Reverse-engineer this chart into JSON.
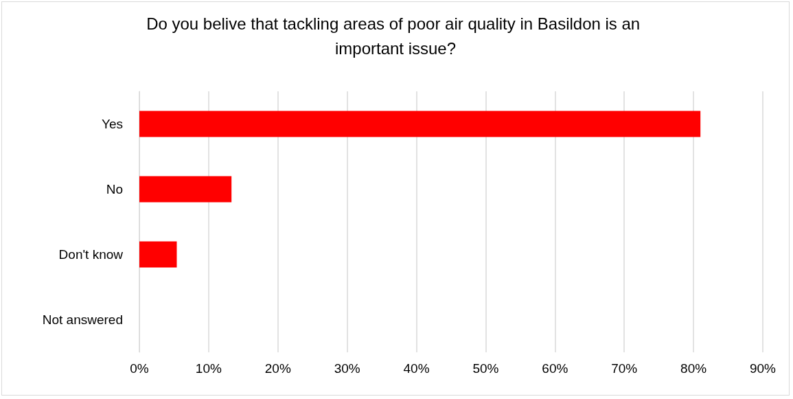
{
  "chart_data": {
    "type": "bar",
    "orientation": "horizontal",
    "title": "Do you belive that tackling areas of poor air quality in Basildon is an important issue?",
    "categories": [
      "Yes",
      "No",
      "Don't know",
      "Not answered"
    ],
    "values": [
      81,
      13.3,
      5.4,
      0
    ],
    "color": "#ff0000",
    "xlim": [
      0,
      90
    ],
    "xticks": [
      {
        "value": 0,
        "label": "0%"
      },
      {
        "value": 10,
        "label": "10%"
      },
      {
        "value": 20,
        "label": "20%"
      },
      {
        "value": 30,
        "label": "30%"
      },
      {
        "value": 40,
        "label": "40%"
      },
      {
        "value": 50,
        "label": "50%"
      },
      {
        "value": 60,
        "label": "60%"
      },
      {
        "value": 70,
        "label": "70%"
      },
      {
        "value": 80,
        "label": "80%"
      },
      {
        "value": 90,
        "label": "90%"
      }
    ],
    "grid": "x"
  }
}
